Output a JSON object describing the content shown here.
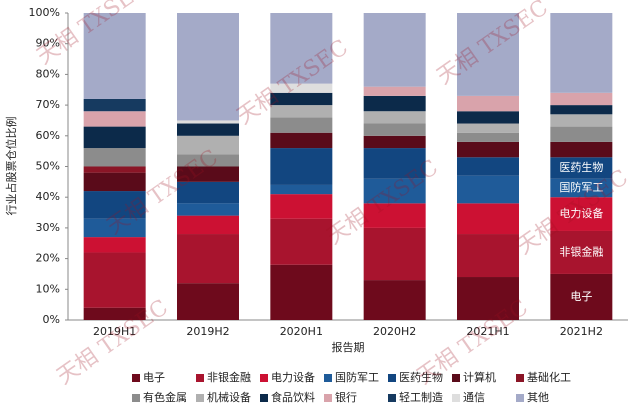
{
  "chart_data": {
    "type": "stacked-bar",
    "y_label": "行业占股票仓位比例",
    "x_label": "报告期",
    "watermark": "天相 TXSEC",
    "categories": [
      "2019H1",
      "2019H2",
      "2020H1",
      "2020H2",
      "2021H1",
      "2021H2"
    ],
    "ylim": [
      0,
      100
    ],
    "yticks": [
      {
        "value": 0,
        "label": "0%"
      },
      {
        "value": 10,
        "label": "10%"
      },
      {
        "value": 20,
        "label": "20%"
      },
      {
        "value": 30,
        "label": "30%"
      },
      {
        "value": 40,
        "label": "40%"
      },
      {
        "value": 50,
        "label": "50%"
      },
      {
        "value": 60,
        "label": "60%"
      },
      {
        "value": 70,
        "label": "70%"
      },
      {
        "value": 80,
        "label": "80%"
      },
      {
        "value": 90,
        "label": "90%"
      },
      {
        "value": 100,
        "label": "100%"
      }
    ],
    "series": [
      {
        "name": "电子",
        "color": "#6e0a1c",
        "values": [
          4,
          12,
          18,
          13,
          14,
          15
        ]
      },
      {
        "name": "非银金融",
        "color": "#a8142e",
        "values": [
          18,
          16,
          15,
          17,
          14,
          14
        ]
      },
      {
        "name": "电力设备",
        "color": "#cc1133",
        "values": [
          5,
          6,
          8,
          8,
          10,
          11
        ]
      },
      {
        "name": "国防军工",
        "color": "#1f5b99",
        "values": [
          6,
          4,
          3,
          8,
          9,
          6
        ]
      },
      {
        "name": "医药生物",
        "color": "#124680",
        "values": [
          9,
          7,
          12,
          10,
          6,
          7
        ]
      },
      {
        "name": "计算机",
        "color": "#5a0b1a",
        "values": [
          6,
          5,
          5,
          4,
          5,
          5
        ]
      },
      {
        "name": "基础化工",
        "color": "#8a1526",
        "values": [
          2,
          0,
          0,
          0,
          0,
          0
        ]
      },
      {
        "name": "有色金属",
        "color": "#8c8c8c",
        "values": [
          6,
          4,
          5,
          4,
          3,
          5
        ]
      },
      {
        "name": "机械设备",
        "color": "#b0b0b0",
        "values": [
          0,
          6,
          4,
          4,
          3,
          4
        ]
      },
      {
        "name": "食品饮料",
        "color": "#0c2a4a",
        "values": [
          7,
          4,
          4,
          5,
          4,
          3
        ]
      },
      {
        "name": "银行",
        "color": "#d9a3ab",
        "values": [
          5,
          0,
          0,
          3,
          5,
          4
        ]
      },
      {
        "name": "轻工制造",
        "color": "#163a60",
        "values": [
          4,
          0,
          0,
          0,
          0,
          0
        ]
      },
      {
        "name": "通信",
        "color": "#dedede",
        "values": [
          0,
          1,
          3,
          0,
          0,
          0
        ]
      },
      {
        "name": "其他",
        "color": "#a4aac8",
        "values": [
          28,
          35,
          23,
          24,
          27,
          26
        ]
      }
    ]
  }
}
